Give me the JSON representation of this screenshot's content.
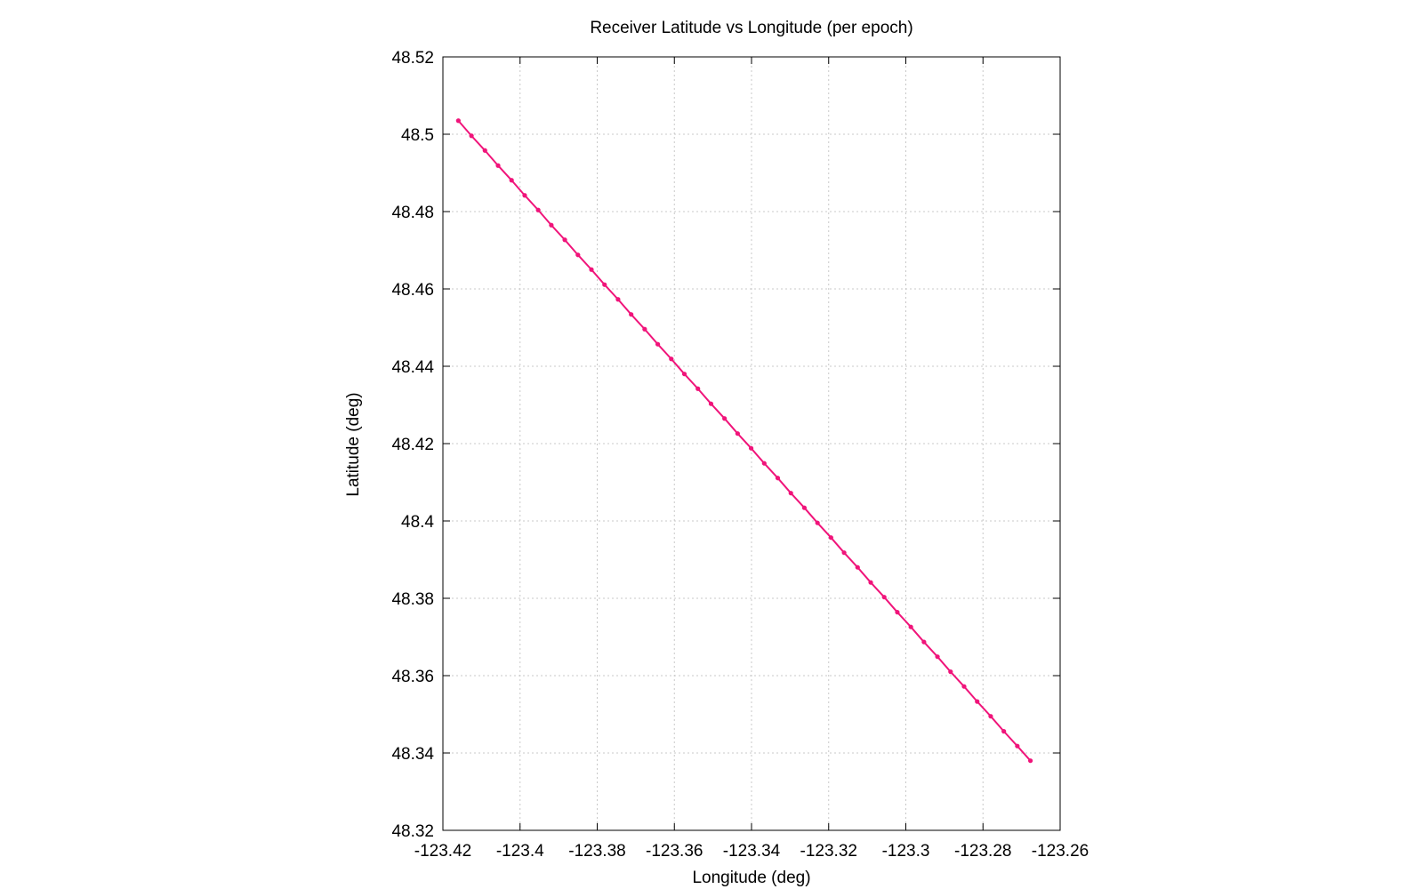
{
  "chart_data": {
    "type": "line",
    "title": "Receiver Latitude vs Longitude (per epoch)",
    "xlabel": "Longitude (deg)",
    "ylabel": "Latitude (deg)",
    "xlim": [
      -123.42,
      -123.26
    ],
    "ylim": [
      48.32,
      48.52
    ],
    "x_ticks": [
      -123.42,
      -123.4,
      -123.38,
      -123.36,
      -123.34,
      -123.32,
      -123.3,
      -123.28,
      -123.26
    ],
    "x_tick_labels": [
      "-123.42",
      "-123.4",
      "-123.38",
      "-123.36",
      "-123.34",
      "-123.32",
      "-123.3",
      "-123.28",
      "-123.26"
    ],
    "y_ticks": [
      48.32,
      48.34,
      48.36,
      48.38,
      48.4,
      48.42,
      48.44,
      48.46,
      48.48,
      48.5,
      48.52
    ],
    "y_tick_labels": [
      "48.32",
      "48.34",
      "48.36",
      "48.38",
      "48.4",
      "48.42",
      "48.44",
      "48.46",
      "48.48",
      "48.5",
      "48.52"
    ],
    "grid": true,
    "series_color": "#f0147a",
    "series": [
      {
        "x": [
          -123.416,
          -123.4126,
          -123.4091,
          -123.4057,
          -123.4022,
          -123.3988,
          -123.3953,
          -123.3919,
          -123.3884,
          -123.385,
          -123.3815,
          -123.3781,
          -123.3746,
          -123.3712,
          -123.3677,
          -123.3643,
          -123.3608,
          -123.3574,
          -123.3539,
          -123.3505,
          -123.347,
          -123.3436,
          -123.3401,
          -123.3367,
          -123.3332,
          -123.3298,
          -123.3263,
          -123.3229,
          -123.3194,
          -123.316,
          -123.3125,
          -123.3091,
          -123.3056,
          -123.3022,
          -123.2987,
          -123.2953,
          -123.2918,
          -123.2884,
          -123.2849,
          -123.2815,
          -123.278,
          -123.2746,
          -123.2711,
          -123.2677
        ],
        "y": [
          48.5035,
          48.4996,
          48.4958,
          48.4919,
          48.4881,
          48.4842,
          48.4804,
          48.4765,
          48.4727,
          48.4688,
          48.465,
          48.4611,
          48.4573,
          48.4534,
          48.4496,
          48.4457,
          48.4419,
          48.438,
          48.4342,
          48.4303,
          48.4265,
          48.4226,
          48.4188,
          48.4149,
          48.4111,
          48.4072,
          48.4034,
          48.3995,
          48.3957,
          48.3918,
          48.388,
          48.3841,
          48.3803,
          48.3764,
          48.3726,
          48.3687,
          48.3649,
          48.361,
          48.3572,
          48.3533,
          48.3495,
          48.3456,
          48.3418,
          48.338
        ]
      }
    ]
  }
}
